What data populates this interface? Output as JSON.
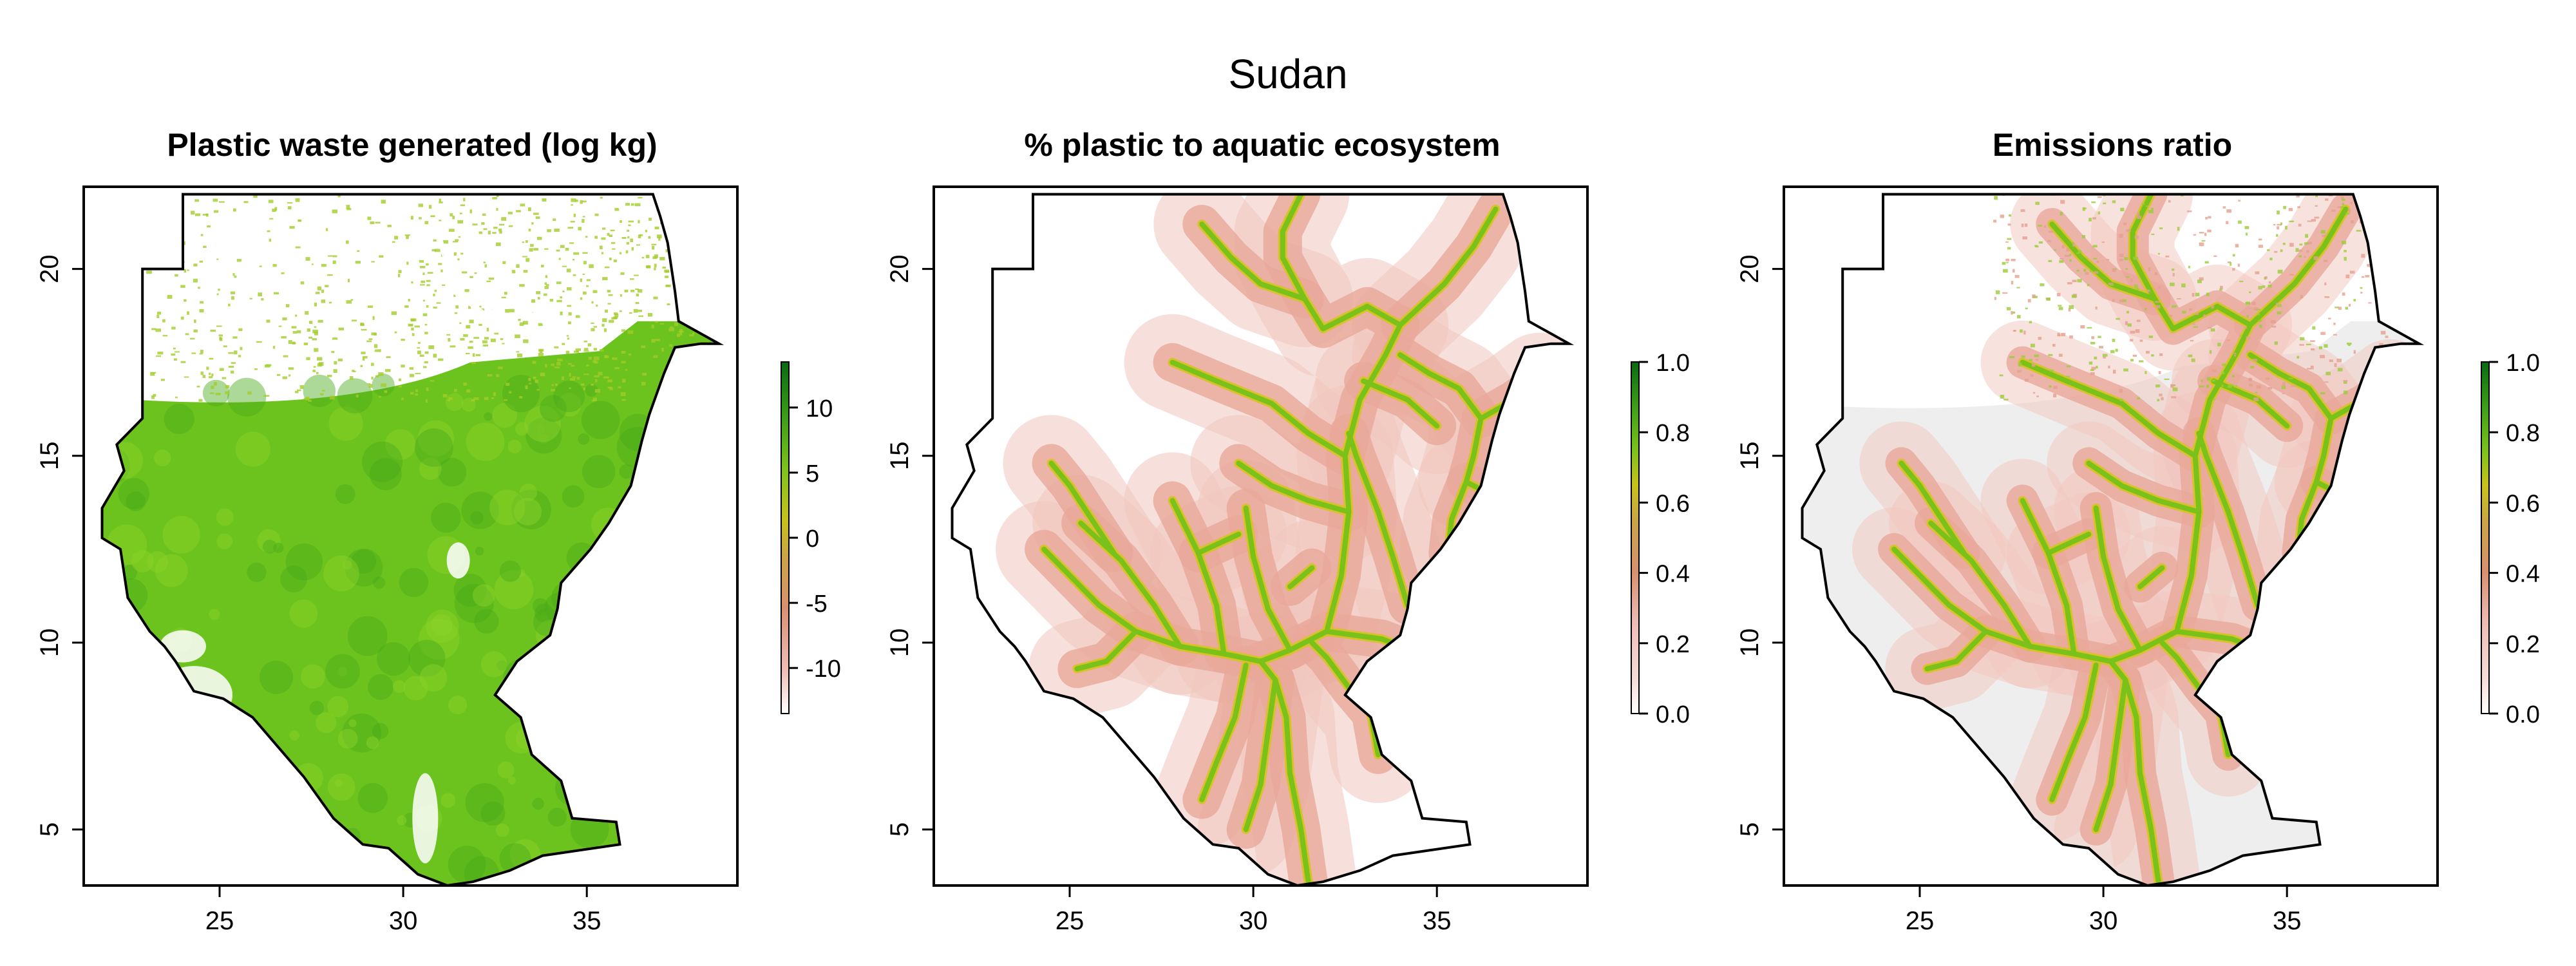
{
  "figure_title": "Sudan",
  "palette": [
    "#ffffff",
    "#f6dcd8",
    "#eebfb7",
    "#d99070",
    "#c9a545",
    "#c8c21a",
    "#7bc21c",
    "#3a9c17",
    "#0a6a12"
  ],
  "colors": {
    "land_gray": "#eeeeee",
    "river_green": "#7ac21a",
    "river_yellow": "#d8c22a",
    "halo": "#f1c6bd",
    "waste_green": "#6cc31d",
    "waste_dark": "#4aaa1a"
  },
  "panels": [
    {
      "id": "waste",
      "title": "Plastic waste generated (log kg)",
      "x_ticks": [
        "25",
        "30",
        "35"
      ],
      "y_ticks": [
        "5",
        "10",
        "15",
        "20"
      ],
      "legend_ticks": [
        "10",
        "5",
        "0",
        "-5",
        "-10"
      ]
    },
    {
      "id": "pct",
      "title": "% plastic to aquatic ecosystem",
      "x_ticks": [
        "25",
        "30",
        "35"
      ],
      "y_ticks": [
        "5",
        "10",
        "15",
        "20"
      ],
      "legend_ticks": [
        "1.0",
        "0.8",
        "0.6",
        "0.4",
        "0.2",
        "0.0"
      ]
    },
    {
      "id": "ratio",
      "title": "Emissions ratio",
      "x_ticks": [
        "25",
        "30",
        "35"
      ],
      "y_ticks": [
        "5",
        "10",
        "15",
        "20"
      ],
      "legend_ticks": [
        "1.0",
        "0.8",
        "0.6",
        "0.4",
        "0.2",
        "0.0"
      ]
    }
  ]
}
